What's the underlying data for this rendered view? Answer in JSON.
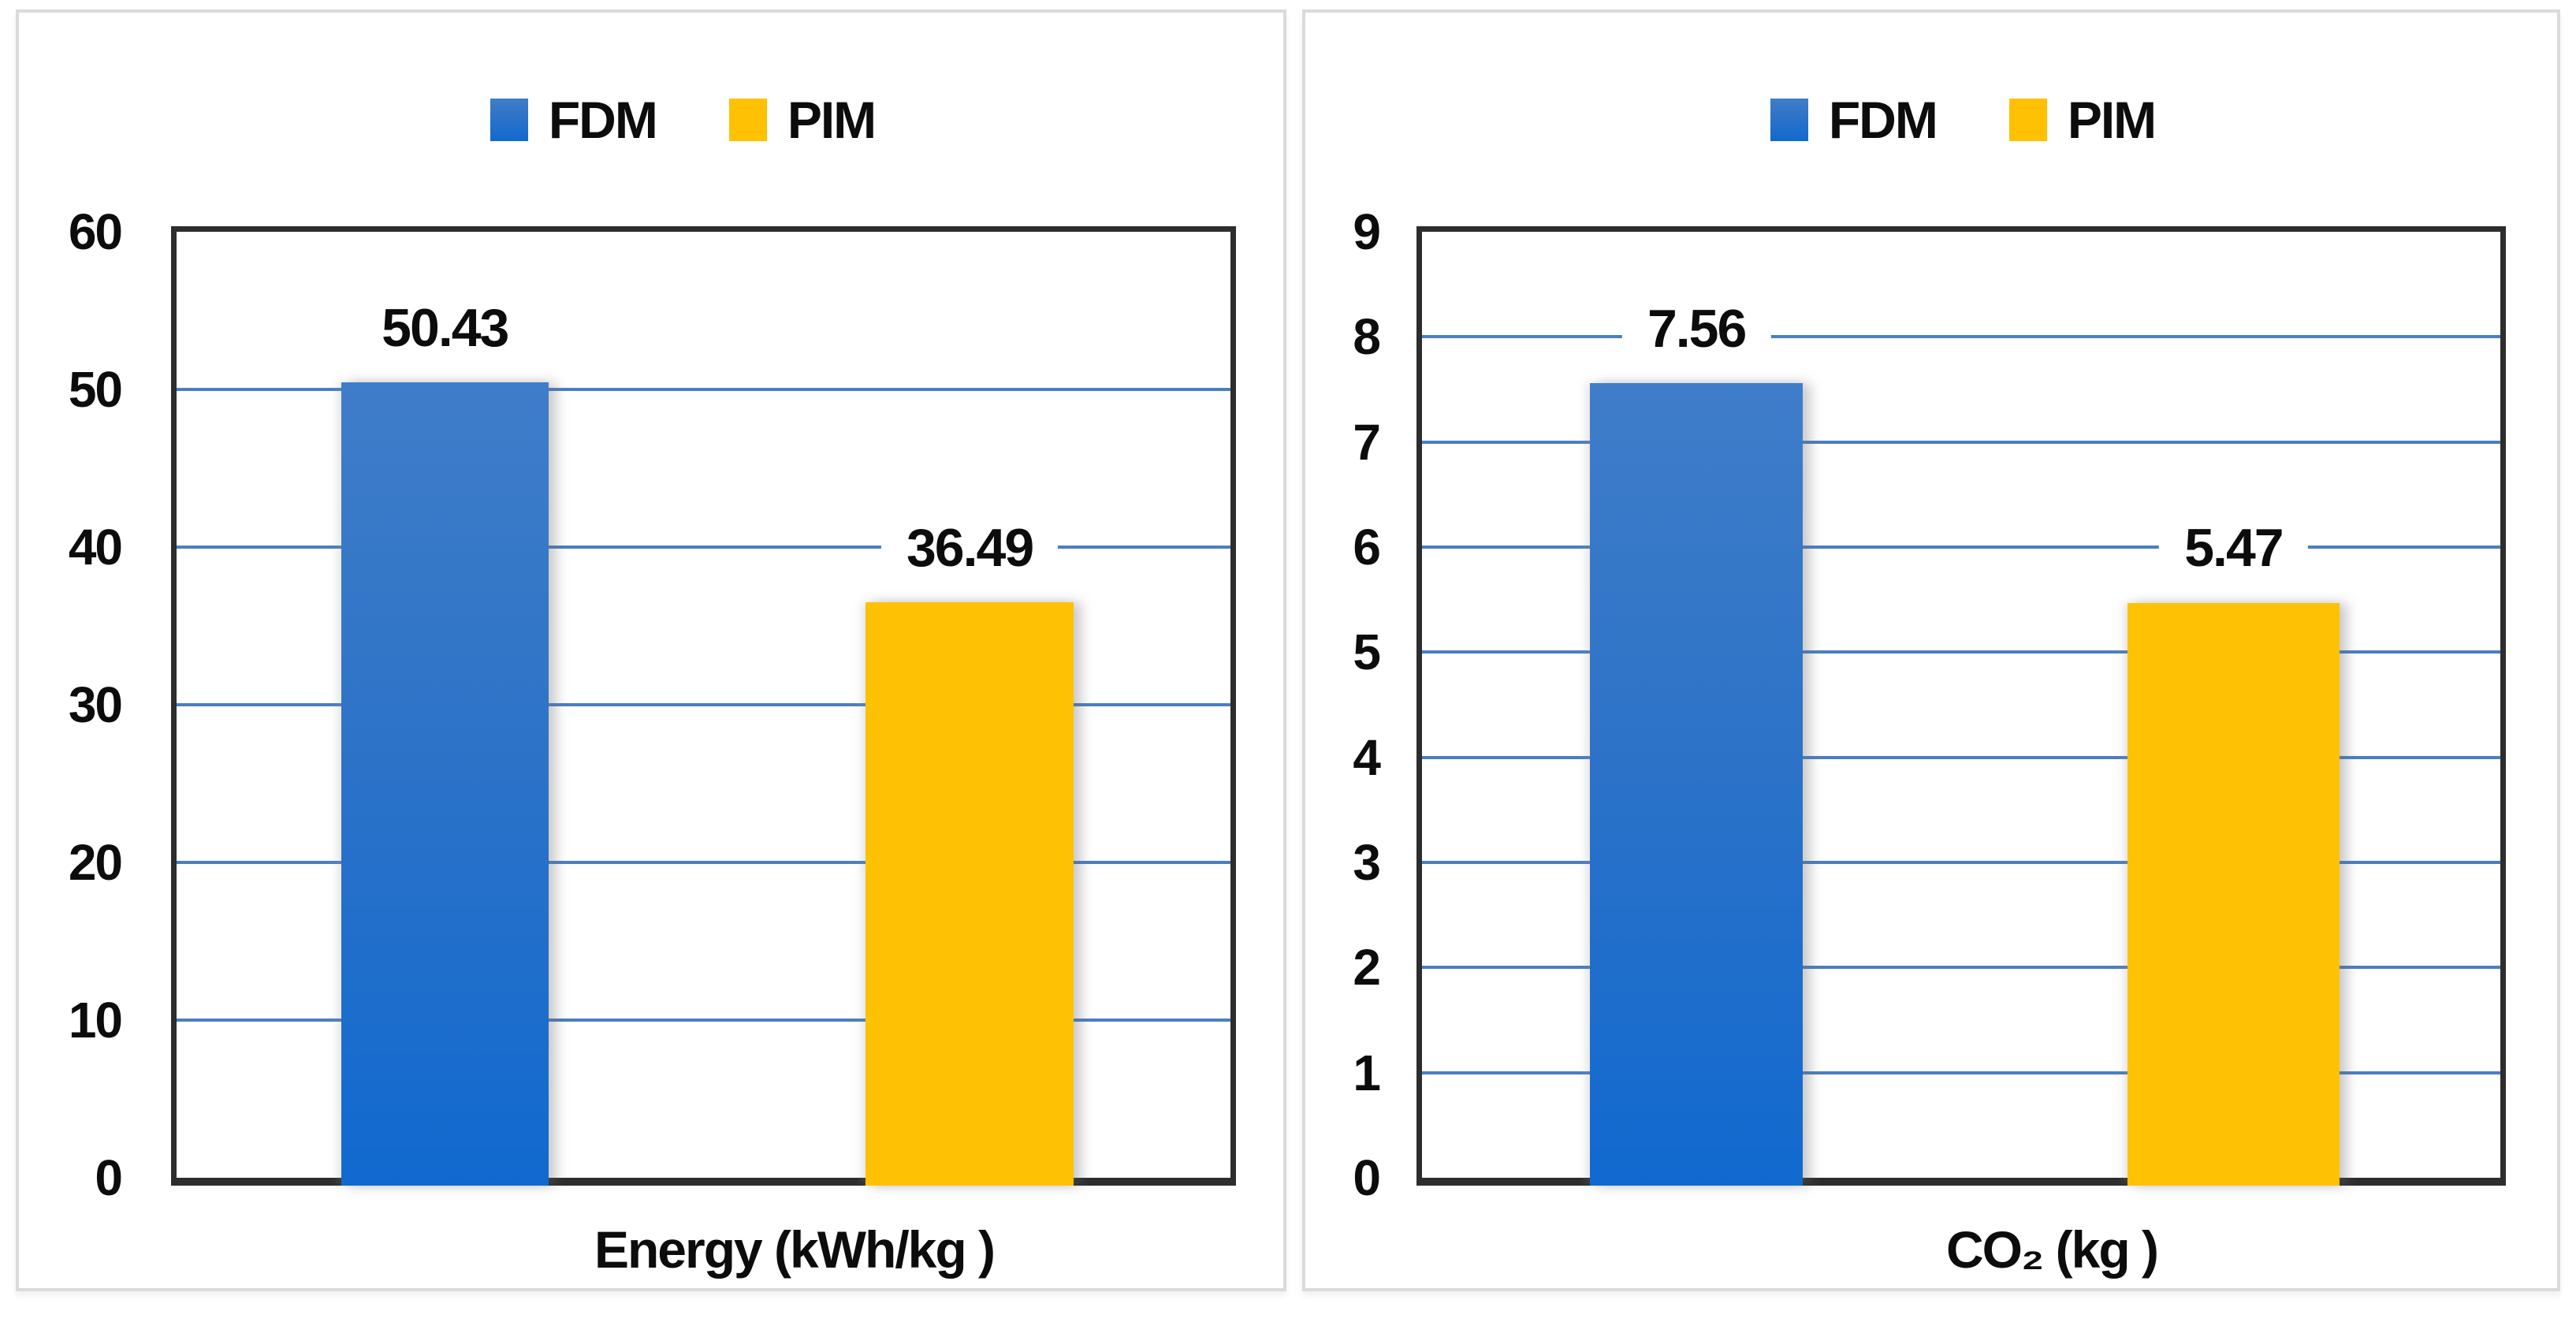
{
  "figure": {
    "background_color": "#ffffff",
    "panel_border_color": "#dbdbdb",
    "plot_border_color": "#2d2d2d",
    "gridline_color": "#4b7ec2",
    "text_color": "#0c0c0c"
  },
  "series_colors": {
    "FDM": "#2d73c8",
    "FDM_gradient_top": "#3f7dc9",
    "FDM_gradient_bottom": "#1169cf",
    "PIM": "#ffc103"
  },
  "chart_data": [
    {
      "type": "bar",
      "title": "",
      "categories": [
        "FDM",
        "PIM"
      ],
      "values": [
        50.43,
        36.49
      ],
      "data_labels": [
        "50.43",
        "36.49"
      ],
      "xlabel": "Energy (kWh/kg )",
      "ylabel": "",
      "ylim": [
        0,
        60
      ],
      "ytick_step": 10,
      "yticks": [
        0,
        10,
        20,
        30,
        40,
        50,
        60
      ],
      "legend_entries": [
        "FDM",
        "PIM"
      ],
      "legend_position": "top-center",
      "grid": "horizontal"
    },
    {
      "type": "bar",
      "title": "",
      "categories": [
        "FDM",
        "PIM"
      ],
      "values": [
        7.56,
        5.47
      ],
      "data_labels": [
        "7.56",
        "5.47"
      ],
      "xlabel": "CO₂ (kg )",
      "ylabel": "",
      "ylim": [
        0,
        9
      ],
      "ytick_step": 1,
      "yticks": [
        0,
        1,
        2,
        3,
        4,
        5,
        6,
        7,
        8,
        9
      ],
      "legend_entries": [
        "FDM",
        "PIM"
      ],
      "legend_position": "top-center",
      "grid": "horizontal"
    }
  ]
}
